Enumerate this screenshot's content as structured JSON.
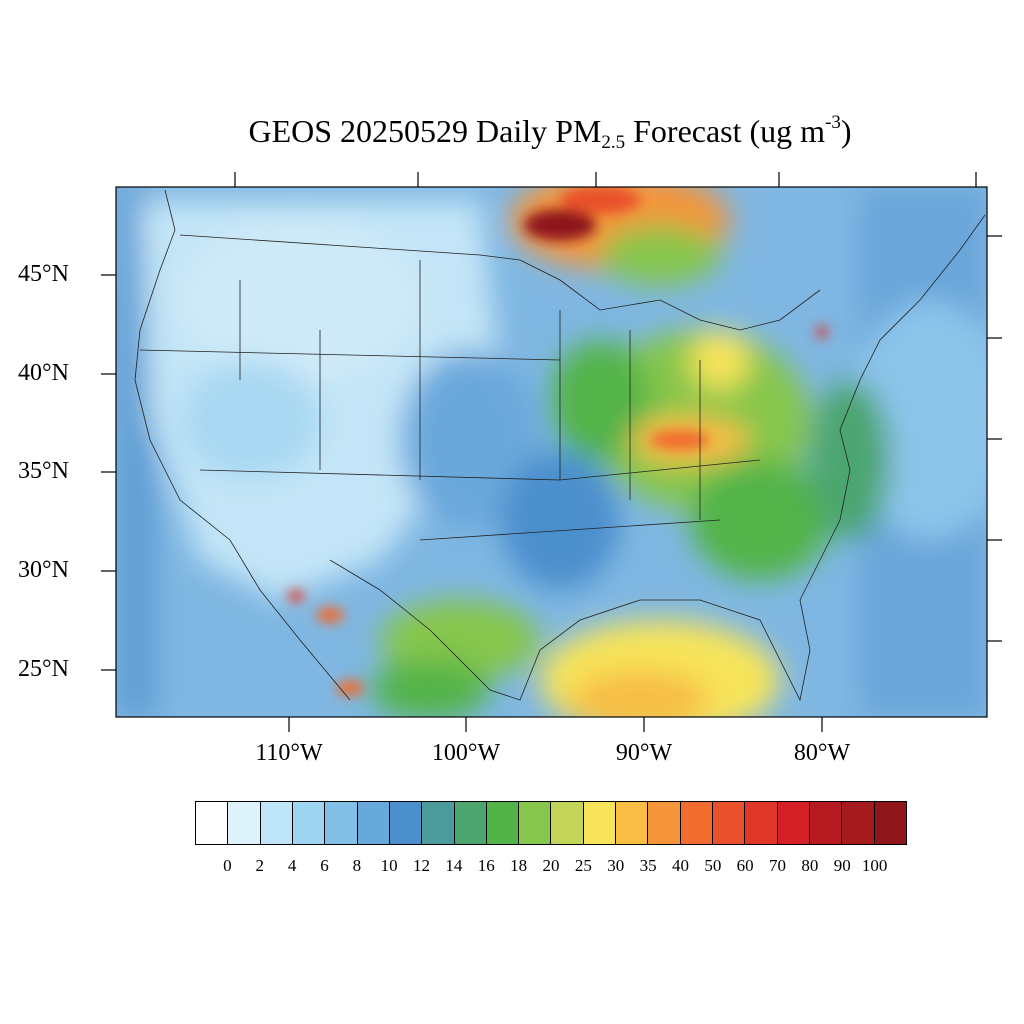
{
  "title": {
    "prefix": "GEOS 20250529 Daily PM",
    "subscript": "2.5",
    "middle": " Forecast (ug m",
    "superscript": "-3",
    "suffix": ")"
  },
  "lat_labels": [
    "45°N",
    "40°N",
    "35°N",
    "30°N",
    "25°N"
  ],
  "lon_labels": [
    "110°W",
    "100°W",
    "90°W",
    "80°W"
  ],
  "colorbar": {
    "colors": [
      "#ffffff",
      "#def2fb",
      "#bfe6f8",
      "#9ed6f2",
      "#82bfe6",
      "#67a9db",
      "#4b8fcd",
      "#4b9a9c",
      "#4ca56f",
      "#52b448",
      "#86c64c",
      "#c3d65a",
      "#f7e45a",
      "#f7bd45",
      "#f5953a",
      "#f06c2f",
      "#e8512c",
      "#df3627",
      "#d41f26",
      "#b71b21",
      "#a51a1d",
      "#8f161a"
    ],
    "labels": [
      "0",
      "2",
      "4",
      "6",
      "8",
      "10",
      "12",
      "14",
      "16",
      "18",
      "20",
      "25",
      "30",
      "35",
      "40",
      "50",
      "60",
      "70",
      "80",
      "90",
      "100"
    ]
  }
}
